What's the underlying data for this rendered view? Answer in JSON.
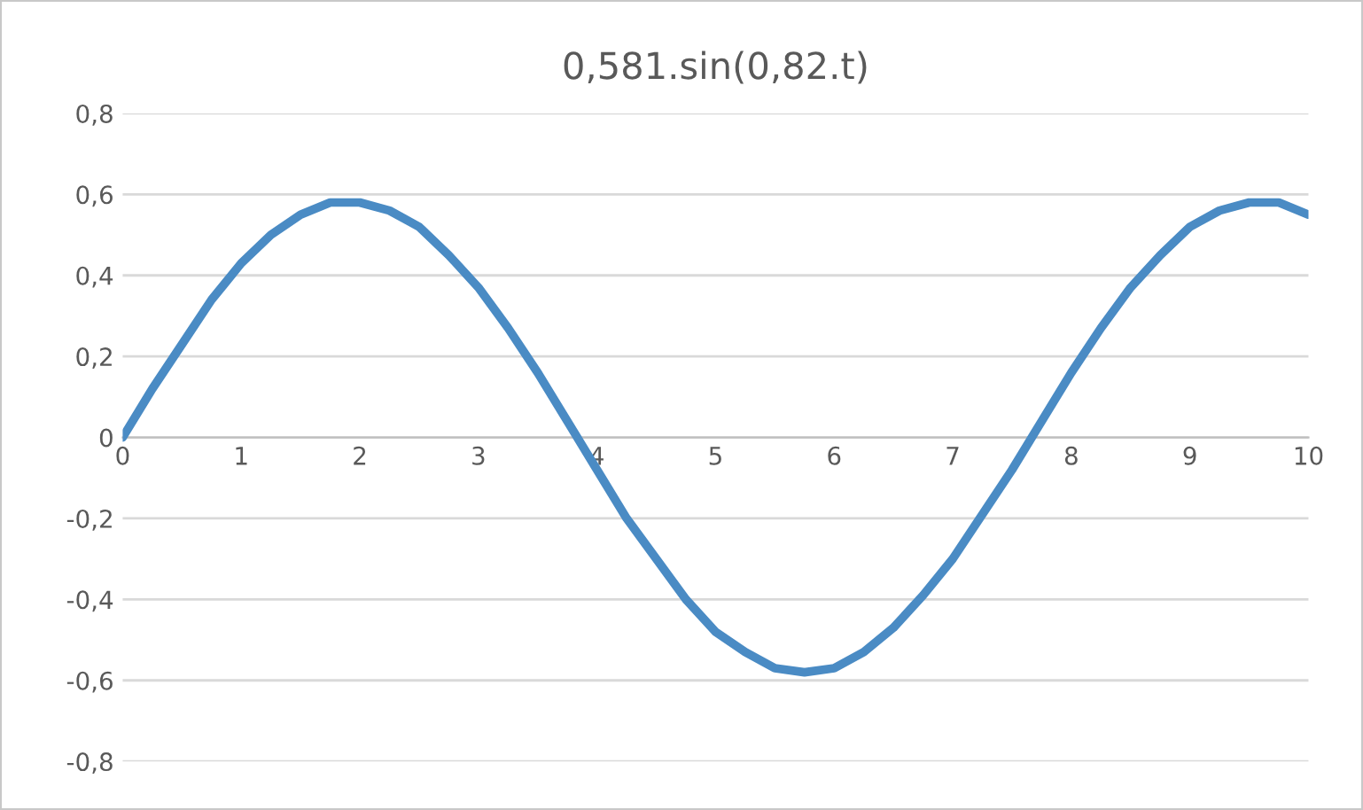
{
  "chart_data": {
    "type": "line",
    "title": "0,581.sin(0,82.t)",
    "x": [
      0,
      0.25,
      0.5,
      0.75,
      1,
      1.25,
      1.5,
      1.75,
      2,
      2.25,
      2.5,
      2.75,
      3,
      3.25,
      3.5,
      3.75,
      4,
      4.25,
      4.5,
      4.75,
      5,
      5.25,
      5.5,
      5.75,
      6,
      6.25,
      6.5,
      6.75,
      7,
      7.25,
      7.5,
      7.75,
      8,
      8.25,
      8.5,
      8.75,
      9,
      9.25,
      9.5,
      9.75,
      10
    ],
    "series": [
      {
        "color": "#4a8bc4",
        "values": [
          0,
          0.12,
          0.23,
          0.34,
          0.43,
          0.5,
          0.55,
          0.58,
          0.58,
          0.56,
          0.52,
          0.45,
          0.37,
          0.27,
          0.16,
          0.04,
          -0.08,
          -0.2,
          -0.3,
          -0.4,
          -0.48,
          -0.53,
          -0.57,
          -0.58,
          -0.57,
          -0.53,
          -0.47,
          -0.39,
          -0.3,
          -0.19,
          -0.08,
          0.04,
          0.16,
          0.27,
          0.37,
          0.45,
          0.52,
          0.56,
          0.58,
          0.58,
          0.55
        ]
      }
    ],
    "xlim": [
      0,
      10
    ],
    "xticks": [
      0,
      1,
      2,
      3,
      4,
      5,
      6,
      7,
      8,
      9,
      10
    ],
    "ylim": [
      -0.8,
      0.8
    ],
    "yticks": [
      {
        "value": -0.8,
        "label": "-0,8"
      },
      {
        "value": -0.6,
        "label": "-0,6"
      },
      {
        "value": -0.4,
        "label": "-0,4"
      },
      {
        "value": -0.2,
        "label": "-0,2"
      },
      0,
      {
        "value": 0.2,
        "label": "0,2"
      },
      {
        "value": 0.4,
        "label": "0,4"
      },
      {
        "value": 0.6,
        "label": "0,6"
      },
      {
        "value": 0.8,
        "label": "0,8"
      }
    ],
    "grid": "y",
    "marker": "none",
    "line_style": "solid"
  }
}
